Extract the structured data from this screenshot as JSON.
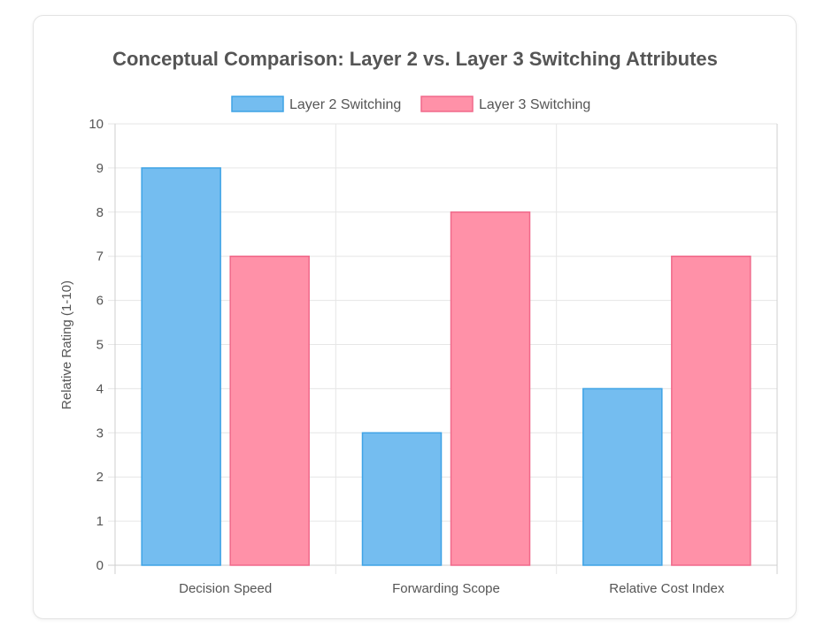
{
  "chart_data": {
    "type": "bar",
    "title": "Conceptual Comparison: Layer 2 vs. Layer 3 Switching Attributes",
    "categories": [
      "Decision Speed",
      "Forwarding Scope",
      "Relative Cost Index"
    ],
    "series": [
      {
        "name": "Layer 2 Switching",
        "values": [
          9,
          3,
          4
        ],
        "fill": "#74bdf0",
        "stroke": "#3fa3e6"
      },
      {
        "name": "Layer 3 Switching",
        "values": [
          7,
          8,
          7
        ],
        "fill": "#ff91a8",
        "stroke": "#f0698a"
      }
    ],
    "xlabel": "",
    "ylabel": "Relative Rating (1-10)",
    "ylim": [
      0,
      10
    ],
    "yticks": [
      "0",
      "1",
      "2",
      "3",
      "4",
      "5",
      "6",
      "7",
      "8",
      "9",
      "10"
    ],
    "grid": true,
    "legend_position": "top"
  }
}
